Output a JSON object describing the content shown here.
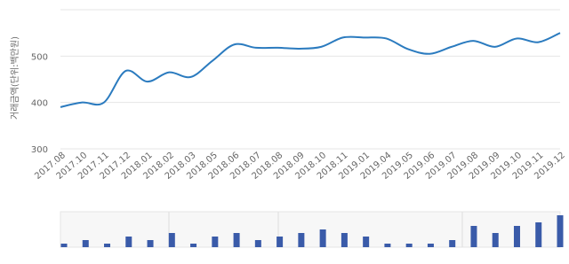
{
  "chart_data": [
    {
      "type": "line",
      "y_label": "거래금액(단위:백만원)",
      "categories": [
        "2017.08",
        "2017.10",
        "2017.11",
        "2017.12",
        "2018.01",
        "2018.02",
        "2018.03",
        "2018.05",
        "2018.06",
        "2018.07",
        "2018.08",
        "2018.09",
        "2018.10",
        "2018.11",
        "2019.01",
        "2019.04",
        "2019.05",
        "2019.06",
        "2019.07",
        "2019.08",
        "2019.09",
        "2019.10",
        "2019.11",
        "2019.12"
      ],
      "series": [
        {
          "color": "#2b7bbf",
          "values": [
            390,
            400,
            400,
            468,
            445,
            465,
            455,
            490,
            525,
            518,
            518,
            516,
            520,
            540,
            540,
            538,
            515,
            505,
            520,
            533,
            520,
            538,
            530,
            550
          ]
        }
      ],
      "ylim": [
        300,
        600
      ],
      "yticks": [
        300,
        400,
        500
      ],
      "grid": true
    },
    {
      "type": "bar",
      "color": "#3a5ba9",
      "values": [
        1,
        2,
        1,
        3,
        2,
        4,
        1,
        3,
        4,
        2,
        3,
        4,
        5,
        4,
        3,
        1,
        1,
        1,
        2,
        6,
        4,
        6,
        7,
        9
      ],
      "ylim": [
        0,
        10
      ]
    }
  ]
}
